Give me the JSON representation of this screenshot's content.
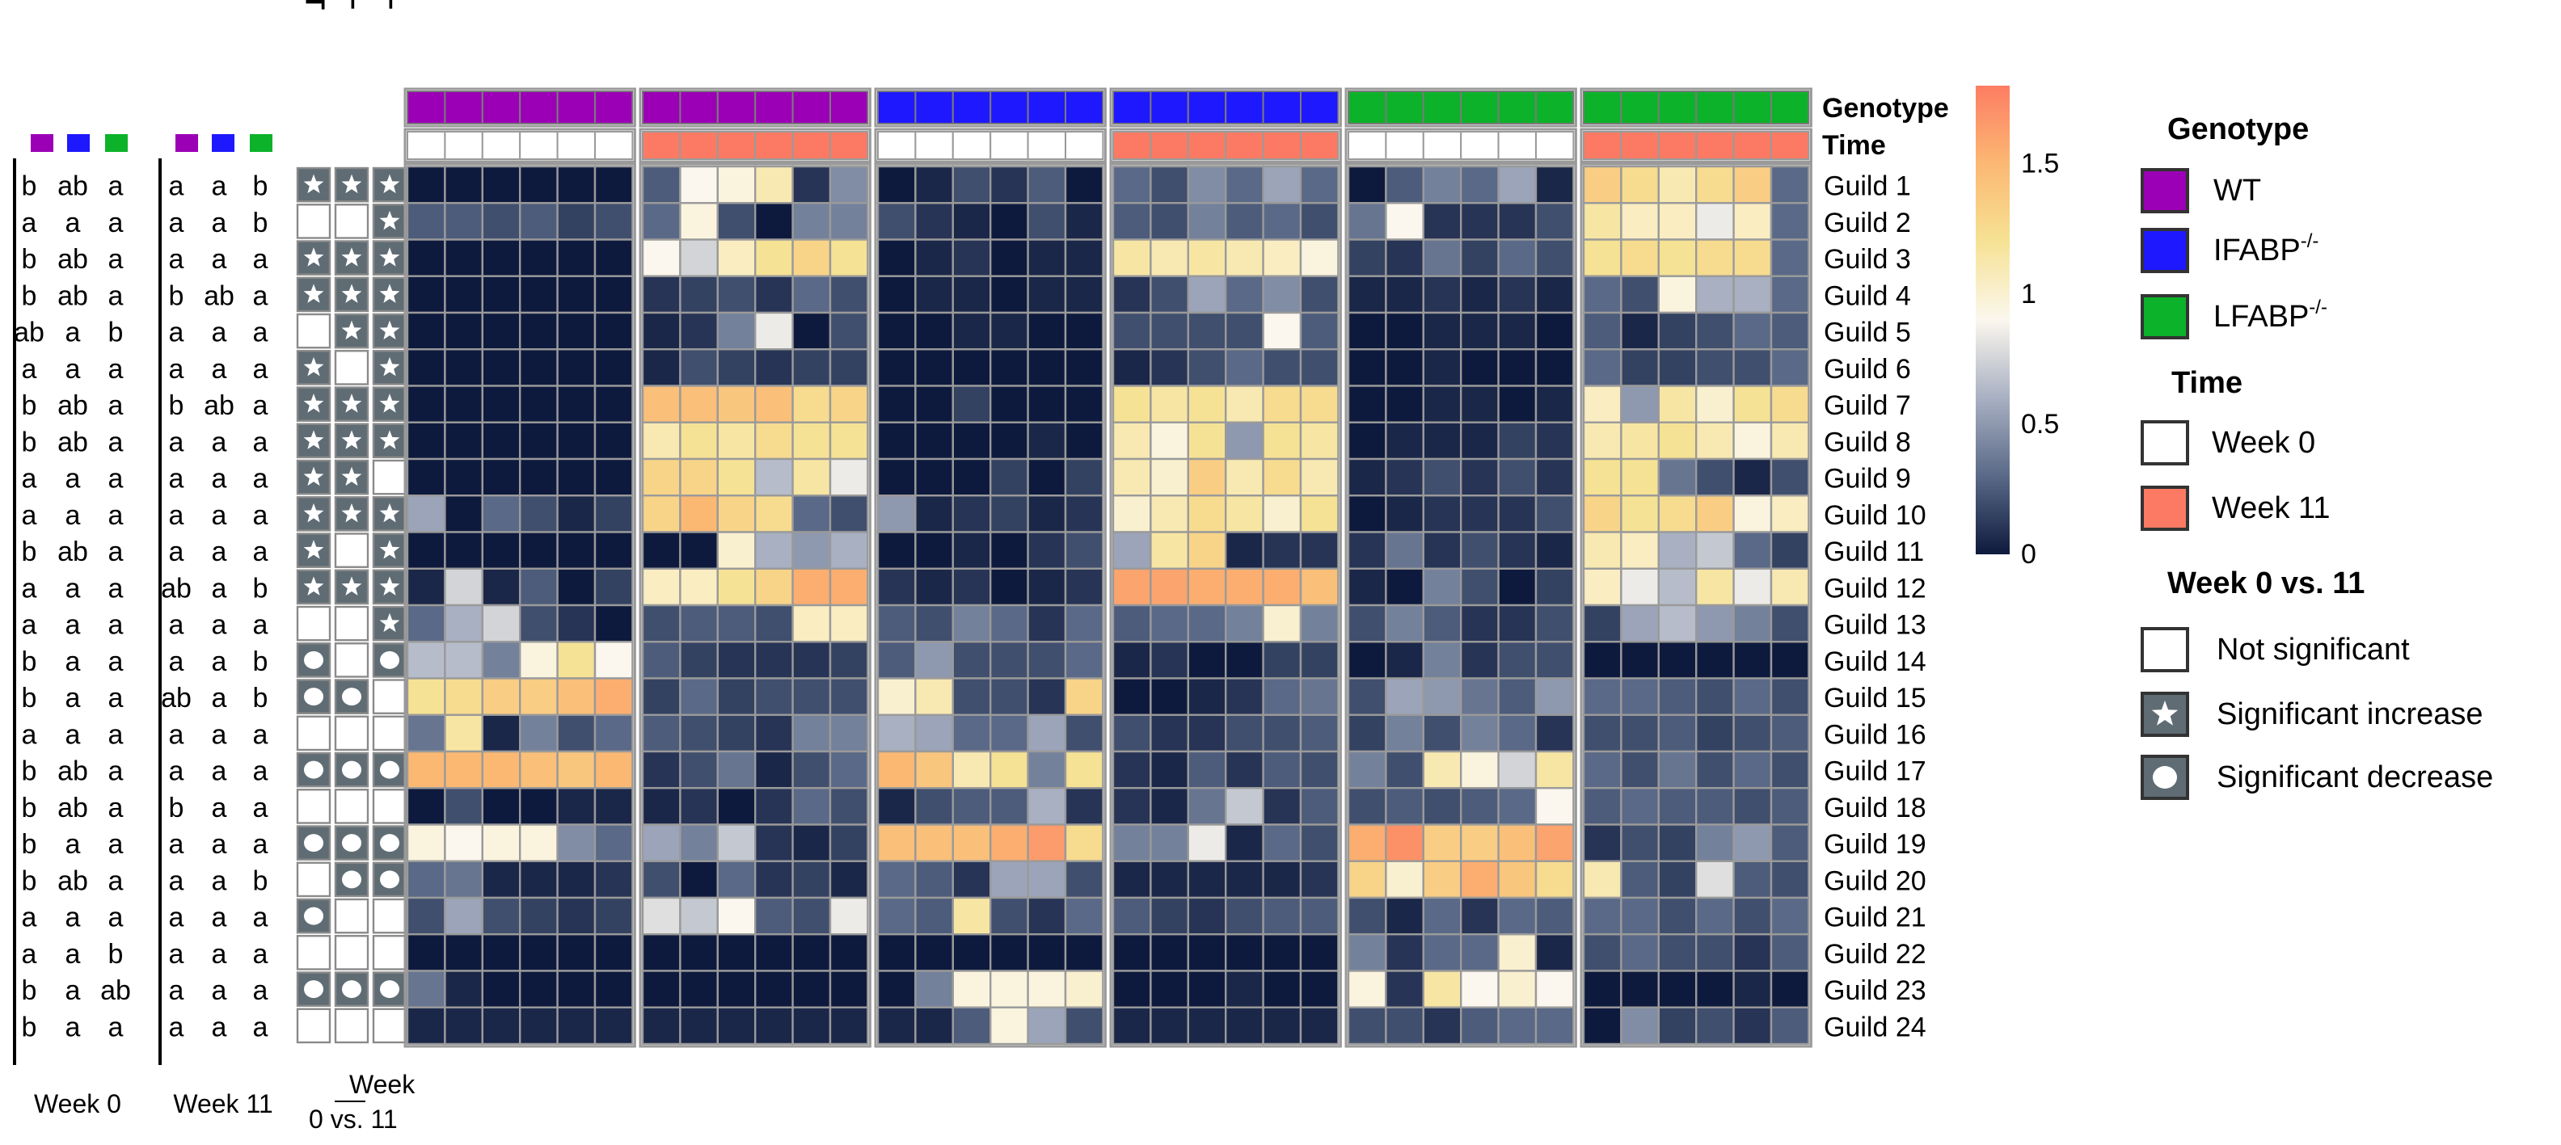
{
  "chart_data": {
    "type": "heatmap",
    "title": "",
    "genotypes": [
      "WT",
      "IFABP−/−",
      "LFABP−/−"
    ],
    "times": [
      "Week 0",
      "Week 11"
    ],
    "row_labels": [
      "Guild 1",
      "Guild 2",
      "Guild 3",
      "Guild 4",
      "Guild 5",
      "Guild 6",
      "Guild 7",
      "Guild 8",
      "Guild 9",
      "Guild 10",
      "Guild 11",
      "Guild 12",
      "Guild 13",
      "Guild 14",
      "Guild 15",
      "Guild 16",
      "Guild 17",
      "Guild 18",
      "Guild 19",
      "Guild 20",
      "Guild 21",
      "Guild 22",
      "Guild 23",
      "Guild 24"
    ],
    "annotation_labels": {
      "genotype": "Genotype",
      "time": "Time"
    },
    "genotype_labels": [
      "WT",
      "IFABP−/−",
      "LFABP−/−"
    ],
    "groups": [
      {
        "genotype": "WT",
        "time": "Week 0"
      },
      {
        "genotype": "WT",
        "time": "Week 11"
      },
      {
        "genotype": "IFABP−/−",
        "time": "Week 0"
      },
      {
        "genotype": "IFABP−/−",
        "time": "Week 11"
      },
      {
        "genotype": "LFABP−/−",
        "time": "Week 0"
      },
      {
        "genotype": "LFABP−/−",
        "time": "Week 11"
      }
    ],
    "values": [
      [
        0.0,
        0.0,
        0.0,
        0.0,
        0.0,
        0.0,
        0.25,
        0.9,
        0.95,
        1.1,
        0.1,
        0.45,
        0.0,
        0.05,
        0.2,
        0.1,
        0.25,
        0.0,
        0.3,
        0.2,
        0.45,
        0.3,
        0.55,
        0.3,
        0.0,
        0.25,
        0.4,
        0.3,
        0.55,
        0.05,
        1.35,
        1.25,
        1.1,
        1.25,
        1.35,
        0.3
      ],
      [
        0.25,
        0.25,
        0.2,
        0.25,
        0.15,
        0.2,
        0.3,
        0.95,
        0.2,
        0.0,
        0.4,
        0.4,
        0.2,
        0.1,
        0.05,
        0.0,
        0.2,
        0.05,
        0.25,
        0.2,
        0.4,
        0.25,
        0.3,
        0.2,
        0.35,
        0.9,
        0.1,
        0.1,
        0.1,
        0.2,
        1.15,
        1.05,
        1.05,
        0.85,
        1.05,
        0.3
      ],
      [
        0.0,
        0.0,
        0.0,
        0.0,
        0.0,
        0.0,
        0.9,
        0.75,
        1.05,
        1.2,
        1.3,
        1.2,
        0.0,
        0.05,
        0.1,
        0.0,
        0.05,
        0.05,
        1.15,
        1.1,
        1.15,
        1.1,
        1.05,
        0.95,
        0.15,
        0.1,
        0.35,
        0.15,
        0.3,
        0.2,
        1.2,
        1.25,
        1.2,
        1.25,
        1.25,
        0.3
      ],
      [
        0.0,
        0.0,
        0.0,
        0.0,
        0.0,
        0.0,
        0.1,
        0.15,
        0.2,
        0.1,
        0.3,
        0.2,
        0.0,
        0.05,
        0.05,
        0.0,
        0.05,
        0.05,
        0.1,
        0.2,
        0.55,
        0.3,
        0.45,
        0.2,
        0.05,
        0.05,
        0.1,
        0.05,
        0.1,
        0.05,
        0.3,
        0.2,
        0.95,
        0.6,
        0.6,
        0.3
      ],
      [
        0.0,
        0.0,
        0.0,
        0.0,
        0.0,
        0.0,
        0.05,
        0.1,
        0.4,
        0.85,
        0.0,
        0.2,
        0.0,
        0.0,
        0.05,
        0.05,
        0.0,
        0.0,
        0.2,
        0.2,
        0.2,
        0.2,
        0.9,
        0.25,
        0.0,
        0.0,
        0.05,
        0.05,
        0.05,
        0.0,
        0.25,
        0.05,
        0.15,
        0.2,
        0.3,
        0.25
      ],
      [
        0.0,
        0.0,
        0.0,
        0.0,
        0.0,
        0.0,
        0.05,
        0.2,
        0.15,
        0.1,
        0.15,
        0.15,
        0.0,
        0.0,
        0.0,
        0.0,
        0.0,
        0.0,
        0.05,
        0.1,
        0.2,
        0.3,
        0.2,
        0.2,
        0.0,
        0.0,
        0.05,
        0.0,
        0.0,
        0.0,
        0.3,
        0.15,
        0.15,
        0.2,
        0.2,
        0.3
      ],
      [
        0.0,
        0.0,
        0.0,
        0.0,
        0.0,
        0.0,
        1.45,
        1.45,
        1.4,
        1.45,
        1.25,
        1.3,
        0.0,
        0.0,
        0.15,
        0.0,
        0.0,
        0.0,
        1.2,
        1.15,
        1.2,
        1.1,
        1.25,
        1.25,
        0.0,
        0.0,
        0.05,
        0.05,
        0.0,
        0.05,
        1.05,
        0.5,
        1.15,
        1.0,
        1.2,
        1.25
      ],
      [
        0.0,
        0.0,
        0.0,
        0.0,
        0.0,
        0.0,
        1.1,
        1.2,
        1.15,
        1.25,
        1.2,
        1.2,
        0.0,
        0.0,
        0.0,
        0.0,
        0.05,
        0.0,
        1.1,
        0.95,
        1.2,
        0.5,
        1.2,
        1.15,
        0.0,
        0.05,
        0.05,
        0.05,
        0.15,
        0.1,
        1.1,
        1.15,
        1.2,
        1.1,
        0.95,
        1.1
      ],
      [
        0.0,
        0.0,
        0.0,
        0.0,
        0.0,
        0.0,
        1.3,
        1.3,
        1.2,
        0.65,
        1.15,
        0.85,
        0.0,
        0.0,
        0.0,
        0.15,
        0.0,
        0.15,
        1.1,
        1.0,
        1.35,
        1.1,
        1.25,
        1.1,
        0.05,
        0.1,
        0.2,
        0.1,
        0.2,
        0.1,
        1.2,
        1.2,
        0.35,
        0.2,
        0.05,
        0.2
      ],
      [
        0.55,
        0.0,
        0.3,
        0.2,
        0.05,
        0.15,
        1.3,
        1.5,
        1.3,
        1.25,
        0.3,
        0.2,
        0.5,
        0.05,
        0.1,
        0.15,
        0.05,
        0.1,
        1.0,
        1.1,
        1.25,
        1.15,
        1.0,
        1.2,
        0.0,
        0.05,
        0.1,
        0.1,
        0.1,
        0.2,
        1.3,
        1.2,
        1.25,
        1.35,
        0.95,
        1.05
      ],
      [
        0.0,
        0.0,
        0.0,
        0.0,
        0.0,
        0.0,
        0.0,
        0.0,
        1.0,
        0.6,
        0.5,
        0.6,
        0.0,
        0.0,
        0.05,
        0.0,
        0.1,
        0.2,
        0.55,
        1.15,
        1.3,
        0.05,
        0.1,
        0.1,
        0.1,
        0.35,
        0.1,
        0.2,
        0.1,
        0.05,
        1.1,
        1.05,
        0.6,
        0.7,
        0.3,
        0.15
      ],
      [
        0.05,
        0.75,
        0.05,
        0.25,
        0.0,
        0.15,
        1.05,
        1.05,
        1.2,
        1.3,
        1.55,
        1.55,
        0.1,
        0.05,
        0.1,
        0.0,
        0.05,
        0.1,
        1.6,
        1.6,
        1.55,
        1.55,
        1.55,
        1.45,
        0.05,
        0.0,
        0.4,
        0.2,
        0.0,
        0.15,
        1.05,
        0.85,
        0.65,
        1.15,
        0.85,
        1.1
      ],
      [
        0.3,
        0.6,
        0.75,
        0.2,
        0.1,
        0.0,
        0.2,
        0.25,
        0.25,
        0.2,
        1.05,
        1.05,
        0.25,
        0.2,
        0.4,
        0.3,
        0.1,
        0.3,
        0.25,
        0.3,
        0.3,
        0.4,
        1.0,
        0.4,
        0.2,
        0.4,
        0.25,
        0.1,
        0.1,
        0.2,
        0.15,
        0.55,
        0.65,
        0.5,
        0.4,
        0.2
      ],
      [
        0.65,
        0.65,
        0.4,
        0.95,
        1.2,
        0.9,
        0.25,
        0.15,
        0.1,
        0.1,
        0.1,
        0.15,
        0.25,
        0.5,
        0.2,
        0.2,
        0.2,
        0.3,
        0.05,
        0.1,
        0.0,
        0.0,
        0.15,
        0.15,
        0.0,
        0.05,
        0.4,
        0.1,
        0.2,
        0.2,
        0.0,
        0.0,
        0.0,
        0.0,
        0.0,
        0.0
      ],
      [
        1.2,
        1.25,
        1.35,
        1.35,
        1.45,
        1.55,
        0.15,
        0.3,
        0.15,
        0.2,
        0.2,
        0.2,
        1.0,
        1.1,
        0.2,
        0.2,
        0.1,
        1.3,
        0.0,
        0.0,
        0.05,
        0.1,
        0.3,
        0.35,
        0.2,
        0.55,
        0.5,
        0.35,
        0.25,
        0.5,
        0.3,
        0.3,
        0.25,
        0.2,
        0.3,
        0.2
      ],
      [
        0.35,
        1.15,
        0.05,
        0.4,
        0.2,
        0.3,
        0.25,
        0.2,
        0.15,
        0.1,
        0.4,
        0.4,
        0.6,
        0.55,
        0.3,
        0.3,
        0.55,
        0.2,
        0.2,
        0.1,
        0.1,
        0.2,
        0.2,
        0.25,
        0.15,
        0.4,
        0.2,
        0.4,
        0.3,
        0.1,
        0.2,
        0.2,
        0.25,
        0.15,
        0.2,
        0.25
      ],
      [
        1.5,
        1.5,
        1.5,
        1.45,
        1.4,
        1.5,
        0.1,
        0.2,
        0.35,
        0.05,
        0.2,
        0.3,
        1.5,
        1.4,
        1.1,
        1.2,
        0.4,
        1.2,
        0.1,
        0.05,
        0.25,
        0.1,
        0.25,
        0.2,
        0.4,
        0.2,
        1.1,
        0.95,
        0.75,
        1.15,
        0.3,
        0.2,
        0.35,
        0.2,
        0.3,
        0.2
      ],
      [
        0.0,
        0.2,
        0.0,
        0.0,
        0.05,
        0.05,
        0.05,
        0.1,
        0.0,
        0.1,
        0.3,
        0.2,
        0.05,
        0.2,
        0.25,
        0.25,
        0.6,
        0.1,
        0.1,
        0.05,
        0.35,
        0.7,
        0.1,
        0.25,
        0.2,
        0.25,
        0.2,
        0.25,
        0.3,
        0.9,
        0.25,
        0.3,
        0.25,
        0.25,
        0.2,
        0.25
      ],
      [
        0.95,
        0.9,
        0.95,
        0.95,
        0.45,
        0.3,
        0.55,
        0.4,
        0.7,
        0.1,
        0.05,
        0.15,
        1.45,
        1.45,
        1.45,
        1.55,
        1.65,
        1.25,
        0.4,
        0.4,
        0.85,
        0.05,
        0.3,
        0.2,
        1.55,
        1.7,
        1.35,
        1.35,
        1.45,
        1.6,
        0.1,
        0.2,
        0.15,
        0.4,
        0.5,
        0.25
      ],
      [
        0.3,
        0.35,
        0.05,
        0.05,
        0.05,
        0.1,
        0.2,
        0.0,
        0.3,
        0.1,
        0.15,
        0.05,
        0.3,
        0.25,
        0.1,
        0.55,
        0.55,
        0.2,
        0.05,
        0.05,
        0.05,
        0.05,
        0.05,
        0.1,
        1.3,
        1.0,
        1.35,
        1.55,
        1.4,
        1.25,
        1.1,
        0.25,
        0.15,
        0.8,
        0.25,
        0.2
      ],
      [
        0.2,
        0.55,
        0.2,
        0.15,
        0.1,
        0.15,
        0.8,
        0.7,
        0.9,
        0.25,
        0.2,
        0.85,
        0.3,
        0.25,
        1.15,
        0.2,
        0.1,
        0.3,
        0.25,
        0.15,
        0.1,
        0.2,
        0.25,
        0.25,
        0.2,
        0.05,
        0.3,
        0.1,
        0.3,
        0.25,
        0.3,
        0.3,
        0.2,
        0.3,
        0.2,
        0.3
      ],
      [
        0.0,
        0.0,
        0.0,
        0.0,
        0.0,
        0.0,
        0.0,
        0.0,
        0.0,
        0.0,
        0.0,
        0.0,
        0.0,
        0.0,
        0.0,
        0.0,
        0.0,
        0.0,
        0.0,
        0.0,
        0.0,
        0.0,
        0.0,
        0.0,
        0.4,
        0.1,
        0.3,
        0.3,
        1.0,
        0.05,
        0.2,
        0.3,
        0.2,
        0.2,
        0.1,
        0.25
      ],
      [
        0.35,
        0.05,
        0.0,
        0.0,
        0.0,
        0.0,
        0.0,
        0.0,
        0.0,
        0.0,
        0.0,
        0.0,
        0.0,
        0.4,
        0.95,
        0.95,
        0.95,
        1.0,
        0.0,
        0.0,
        0.0,
        0.05,
        0.0,
        0.0,
        0.95,
        0.1,
        1.15,
        0.9,
        1.0,
        0.9,
        0.0,
        0.0,
        0.0,
        0.0,
        0.05,
        0.0
      ],
      [
        0.05,
        0.05,
        0.05,
        0.05,
        0.05,
        0.05,
        0.05,
        0.05,
        0.05,
        0.05,
        0.05,
        0.05,
        0.05,
        0.05,
        0.25,
        0.95,
        0.55,
        0.2,
        0.05,
        0.05,
        0.05,
        0.05,
        0.05,
        0.05,
        0.2,
        0.2,
        0.1,
        0.25,
        0.3,
        0.3,
        0.0,
        0.45,
        0.15,
        0.2,
        0.1,
        0.25
      ]
    ],
    "colorbar": {
      "min": 0,
      "max": 1.8,
      "ticks": [
        0,
        0.5,
        1,
        1.5
      ],
      "tick_labels": [
        "0",
        "0.5",
        "1",
        "1.5"
      ],
      "stops": [
        "#0e1a3d",
        "#5a6987",
        "#a8b0c2",
        "#fbf7ee",
        "#f6e294",
        "#fbb873",
        "#fd7d63"
      ]
    },
    "significance": {
      "columns": [
        "WT",
        "IFABP−/−",
        "LFABP−/−"
      ],
      "rows": [
        [
          "inc",
          "inc",
          "inc"
        ],
        [
          "none",
          "none",
          "inc"
        ],
        [
          "inc",
          "inc",
          "inc"
        ],
        [
          "inc",
          "inc",
          "inc"
        ],
        [
          "none",
          "inc",
          "inc"
        ],
        [
          "inc",
          "none",
          "inc"
        ],
        [
          "inc",
          "inc",
          "inc"
        ],
        [
          "inc",
          "inc",
          "inc"
        ],
        [
          "inc",
          "inc",
          "none"
        ],
        [
          "inc",
          "inc",
          "inc"
        ],
        [
          "inc",
          "none",
          "inc"
        ],
        [
          "inc",
          "inc",
          "inc"
        ],
        [
          "none",
          "none",
          "inc"
        ],
        [
          "dec",
          "none",
          "dec"
        ],
        [
          "dec",
          "dec",
          "none"
        ],
        [
          "none",
          "none",
          "none"
        ],
        [
          "dec",
          "dec",
          "dec"
        ],
        [
          "none",
          "none",
          "none"
        ],
        [
          "dec",
          "dec",
          "dec"
        ],
        [
          "none",
          "dec",
          "dec"
        ],
        [
          "dec",
          "none",
          "none"
        ],
        [
          "none",
          "none",
          "none"
        ],
        [
          "dec",
          "dec",
          "dec"
        ],
        [
          "none",
          "none",
          "none"
        ]
      ],
      "xlabel_line1": "Week",
      "xlabel_line2": "0 vs. 11"
    },
    "letters_week0": [
      [
        "b",
        "ab",
        "a"
      ],
      [
        "a",
        "a",
        "a"
      ],
      [
        "b",
        "ab",
        "a"
      ],
      [
        "b",
        "ab",
        "a"
      ],
      [
        "ab",
        "a",
        "b"
      ],
      [
        "a",
        "a",
        "a"
      ],
      [
        "b",
        "ab",
        "a"
      ],
      [
        "b",
        "ab",
        "a"
      ],
      [
        "a",
        "a",
        "a"
      ],
      [
        "a",
        "a",
        "a"
      ],
      [
        "b",
        "ab",
        "a"
      ],
      [
        "a",
        "a",
        "a"
      ],
      [
        "a",
        "a",
        "a"
      ],
      [
        "b",
        "a",
        "a"
      ],
      [
        "b",
        "a",
        "a"
      ],
      [
        "a",
        "a",
        "a"
      ],
      [
        "b",
        "ab",
        "a"
      ],
      [
        "b",
        "ab",
        "a"
      ],
      [
        "b",
        "a",
        "a"
      ],
      [
        "b",
        "ab",
        "a"
      ],
      [
        "a",
        "a",
        "a"
      ],
      [
        "a",
        "a",
        "b"
      ],
      [
        "b",
        "a",
        "ab"
      ],
      [
        "b",
        "a",
        "a"
      ]
    ],
    "letters_week11": [
      [
        "a",
        "a",
        "b"
      ],
      [
        "a",
        "a",
        "b"
      ],
      [
        "a",
        "a",
        "a"
      ],
      [
        "b",
        "ab",
        "a"
      ],
      [
        "a",
        "a",
        "a"
      ],
      [
        "a",
        "a",
        "a"
      ],
      [
        "b",
        "ab",
        "a"
      ],
      [
        "a",
        "a",
        "a"
      ],
      [
        "a",
        "a",
        "a"
      ],
      [
        "a",
        "a",
        "a"
      ],
      [
        "a",
        "a",
        "a"
      ],
      [
        "ab",
        "a",
        "b"
      ],
      [
        "a",
        "a",
        "a"
      ],
      [
        "a",
        "a",
        "b"
      ],
      [
        "ab",
        "a",
        "b"
      ],
      [
        "a",
        "a",
        "a"
      ],
      [
        "a",
        "a",
        "a"
      ],
      [
        "b",
        "a",
        "a"
      ],
      [
        "a",
        "a",
        "a"
      ],
      [
        "a",
        "a",
        "b"
      ],
      [
        "a",
        "a",
        "a"
      ],
      [
        "a",
        "a",
        "a"
      ],
      [
        "a",
        "a",
        "a"
      ],
      [
        "a",
        "a",
        "a"
      ]
    ],
    "letters_xlabels": [
      "Week 0",
      "Week 11"
    ],
    "legend": {
      "genotype_title": "Genotype",
      "genotype_items": [
        {
          "label": "WT",
          "sup": "",
          "color": "#9b00b6"
        },
        {
          "label": "IFABP",
          "sup": "-/-",
          "color": "#1e18ff"
        },
        {
          "label": "LFABP",
          "sup": "-/-",
          "color": "#0cb22a"
        }
      ],
      "time_title": "Time",
      "time_items": [
        {
          "label": "Week 0",
          "color": "#ffffff"
        },
        {
          "label": "Week 11",
          "color": "#fc7a63"
        }
      ],
      "sig_title": "Week 0 vs. 11",
      "sig_items": [
        {
          "label": "Not significant",
          "kind": "none"
        },
        {
          "label": "Significant increase",
          "kind": "inc"
        },
        {
          "label": "Significant decrease",
          "kind": "dec"
        }
      ]
    }
  },
  "colors": {
    "wt": "#9b00b6",
    "ifabp": "#1e18ff",
    "lfabp": "#0cb22a",
    "week0": "#ffffff",
    "week11": "#fc7a63",
    "sig_fill": "#5f6c74",
    "cell_border": "#9a9a9a"
  }
}
